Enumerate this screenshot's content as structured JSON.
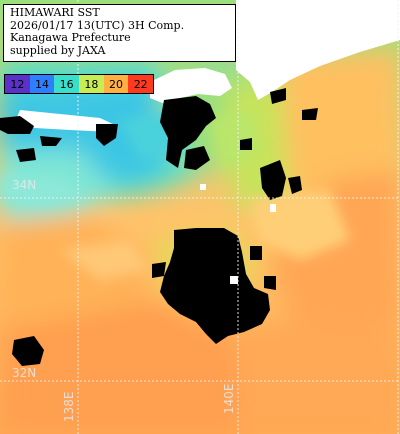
{
  "info": {
    "line1": "HIMAWARI SST",
    "line2": "2026/01/17 13(UTC) 3H Comp.",
    "line3": "Kanagawa Prefecture",
    "line4": "supplied by JAXA"
  },
  "legend": [
    {
      "label": "12",
      "color": "#5a32c8"
    },
    {
      "label": "14",
      "color": "#2e7fff"
    },
    {
      "label": "16",
      "color": "#38e0cc"
    },
    {
      "label": "18",
      "color": "#c8ec56"
    },
    {
      "label": "20",
      "color": "#ffb040"
    },
    {
      "label": "22",
      "color": "#ff3a1e"
    }
  ],
  "grid": {
    "lat_labels": [
      "34N",
      "32N"
    ],
    "lon_labels": [
      "138E",
      "140E"
    ]
  },
  "colors": {
    "land": "#ffffff",
    "no_data": "#000000",
    "grid": "#f2f2f2"
  }
}
